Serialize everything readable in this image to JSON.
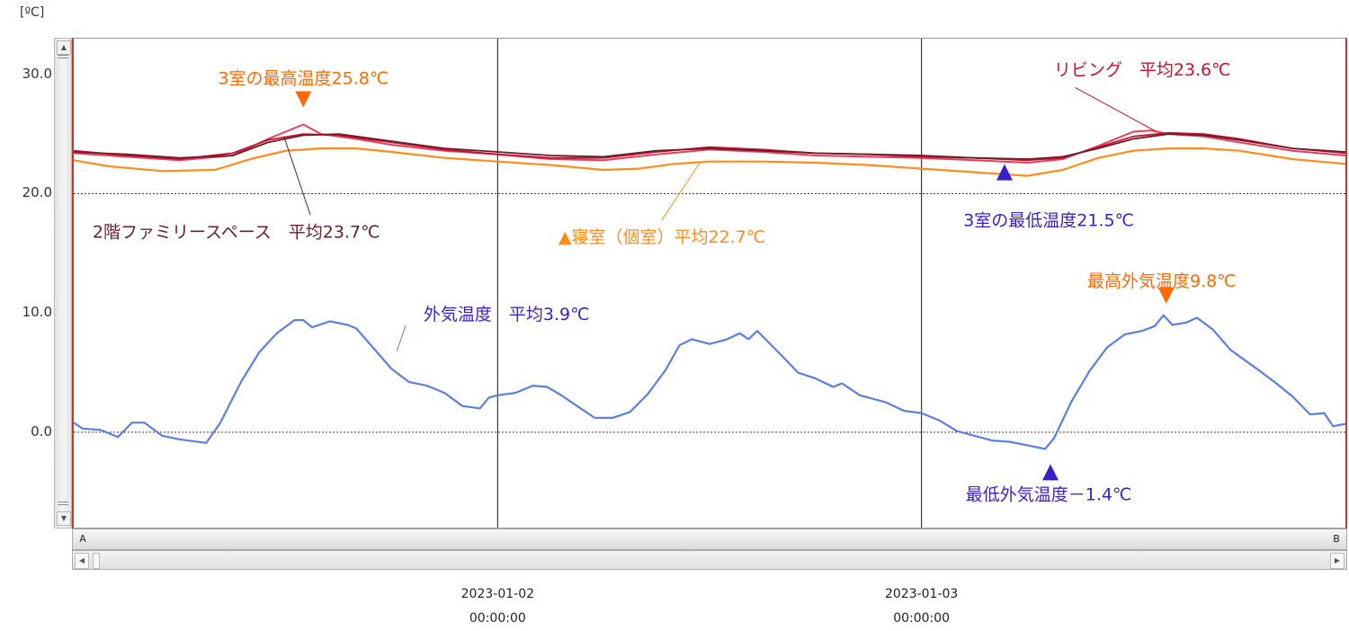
{
  "unit_label": "[ºC]",
  "colors": {
    "living": "#c8102e",
    "family_space": "#6b1d2a",
    "bedroom": "#ff8c1a",
    "room3": "#e83e5c",
    "outdoor": "#5b7fe0",
    "max_marker": "#ff6a00",
    "min_marker": "#3a1fc9"
  },
  "scrollbar": {
    "left_label": "A",
    "right_label": "B"
  },
  "chart_data": {
    "type": "line",
    "ylabel": "[ºC]",
    "ylim": [
      -8,
      33
    ],
    "yticks": [
      "30.0",
      "20.0",
      "10.0",
      "0.0"
    ],
    "ytick_values": [
      30,
      20,
      10,
      0
    ],
    "xlim": [
      0,
      72
    ],
    "xticks": [
      {
        "x": 24,
        "date": "2023-01-02",
        "time": "00:00:00"
      },
      {
        "x": 48,
        "date": "2023-01-03",
        "time": "00:00:00"
      }
    ],
    "reference_lines": [
      20,
      0
    ],
    "series_samples": {
      "outdoor": [
        [
          0,
          0.8
        ],
        [
          0.5,
          0.3
        ],
        [
          1.5,
          0.2
        ],
        [
          2.5,
          -0.4
        ],
        [
          3.3,
          0.8
        ],
        [
          4,
          0.8
        ],
        [
          5,
          -0.3
        ],
        [
          6,
          -0.6
        ],
        [
          7.5,
          -0.9
        ],
        [
          8.3,
          0.8
        ],
        [
          9.5,
          4.3
        ],
        [
          10.5,
          6.7
        ],
        [
          11.5,
          8.3
        ],
        [
          12.5,
          9.4
        ],
        [
          13,
          9.4
        ],
        [
          13.5,
          8.8
        ],
        [
          14.5,
          9.3
        ],
        [
          15.5,
          9.0
        ],
        [
          16,
          8.7
        ],
        [
          17,
          7.0
        ],
        [
          18,
          5.3
        ],
        [
          19,
          4.2
        ],
        [
          20,
          3.9
        ],
        [
          21,
          3.3
        ],
        [
          22,
          2.2
        ],
        [
          23,
          2.0
        ],
        [
          23.5,
          2.9
        ],
        [
          24,
          3.1
        ],
        [
          25,
          3.3
        ],
        [
          26,
          3.9
        ],
        [
          26.8,
          3.8
        ],
        [
          27.5,
          3.2
        ],
        [
          28.5,
          2.2
        ],
        [
          29.5,
          1.2
        ],
        [
          30.5,
          1.2
        ],
        [
          31.5,
          1.7
        ],
        [
          32.5,
          3.2
        ],
        [
          33.5,
          5.2
        ],
        [
          34.3,
          7.3
        ],
        [
          35,
          7.8
        ],
        [
          36,
          7.4
        ],
        [
          37,
          7.8
        ],
        [
          37.7,
          8.3
        ],
        [
          38.2,
          7.8
        ],
        [
          38.7,
          8.5
        ],
        [
          39.5,
          7.3
        ],
        [
          40.3,
          6.1
        ],
        [
          41,
          5.0
        ],
        [
          42,
          4.5
        ],
        [
          43,
          3.8
        ],
        [
          43.5,
          4.1
        ],
        [
          44.5,
          3.1
        ],
        [
          46,
          2.5
        ],
        [
          47,
          1.8
        ],
        [
          48,
          1.6
        ],
        [
          49,
          1.0
        ],
        [
          50,
          0.1
        ],
        [
          51,
          -0.3
        ],
        [
          52,
          -0.7
        ],
        [
          53,
          -0.8
        ],
        [
          54,
          -1.1
        ],
        [
          55,
          -1.4
        ],
        [
          55.5,
          -0.5
        ],
        [
          56.5,
          2.6
        ],
        [
          57.5,
          5.1
        ],
        [
          58.5,
          7.1
        ],
        [
          59.5,
          8.2
        ],
        [
          60.5,
          8.5
        ],
        [
          61.2,
          8.9
        ],
        [
          61.7,
          9.8
        ],
        [
          62.2,
          9.0
        ],
        [
          63,
          9.2
        ],
        [
          63.6,
          9.6
        ],
        [
          64.5,
          8.6
        ],
        [
          65.5,
          6.9
        ],
        [
          67,
          5.3
        ],
        [
          68,
          4.2
        ],
        [
          69,
          3.0
        ],
        [
          70,
          1.5
        ],
        [
          70.8,
          1.6
        ],
        [
          71.3,
          0.5
        ],
        [
          72,
          0.7
        ]
      ],
      "living": [
        [
          0,
          23.6
        ],
        [
          3,
          23.2
        ],
        [
          6,
          22.9
        ],
        [
          9,
          23.4
        ],
        [
          11,
          24.5
        ],
        [
          13,
          25.0
        ],
        [
          15,
          24.9
        ],
        [
          18,
          24.3
        ],
        [
          21,
          23.7
        ],
        [
          24,
          23.3
        ],
        [
          27,
          23.0
        ],
        [
          30,
          23.0
        ],
        [
          33,
          23.5
        ],
        [
          36,
          23.9
        ],
        [
          39,
          23.7
        ],
        [
          42,
          23.4
        ],
        [
          45,
          23.3
        ],
        [
          48,
          23.1
        ],
        [
          51,
          23.0
        ],
        [
          54,
          22.8
        ],
        [
          56,
          23.0
        ],
        [
          58,
          23.9
        ],
        [
          60,
          24.8
        ],
        [
          62,
          25.1
        ],
        [
          64,
          25.0
        ],
        [
          66,
          24.6
        ],
        [
          69,
          23.8
        ],
        [
          72,
          23.4
        ]
      ],
      "family_space": [
        [
          0,
          23.5
        ],
        [
          3,
          23.3
        ],
        [
          6,
          23.0
        ],
        [
          9,
          23.2
        ],
        [
          11,
          24.3
        ],
        [
          13,
          24.9
        ],
        [
          15,
          25.0
        ],
        [
          18,
          24.4
        ],
        [
          21,
          23.8
        ],
        [
          24,
          23.5
        ],
        [
          27,
          23.2
        ],
        [
          30,
          23.1
        ],
        [
          33,
          23.6
        ],
        [
          36,
          23.8
        ],
        [
          39,
          23.6
        ],
        [
          42,
          23.4
        ],
        [
          45,
          23.3
        ],
        [
          48,
          23.2
        ],
        [
          51,
          23.0
        ],
        [
          54,
          22.9
        ],
        [
          56,
          23.1
        ],
        [
          58,
          23.8
        ],
        [
          60,
          24.6
        ],
        [
          62,
          25.0
        ],
        [
          64,
          24.9
        ],
        [
          66,
          24.5
        ],
        [
          69,
          23.8
        ],
        [
          72,
          23.5
        ]
      ],
      "room3": [
        [
          0,
          23.4
        ],
        [
          3,
          23.1
        ],
        [
          6,
          22.8
        ],
        [
          9,
          23.2
        ],
        [
          11,
          24.6
        ],
        [
          12.5,
          25.5
        ],
        [
          13,
          25.8
        ],
        [
          14,
          25.0
        ],
        [
          16,
          24.6
        ],
        [
          18,
          24.1
        ],
        [
          21,
          23.6
        ],
        [
          24,
          23.3
        ],
        [
          27,
          22.9
        ],
        [
          30,
          22.8
        ],
        [
          33,
          23.3
        ],
        [
          36,
          23.7
        ],
        [
          39,
          23.5
        ],
        [
          42,
          23.2
        ],
        [
          45,
          23.1
        ],
        [
          48,
          23.0
        ],
        [
          51,
          22.8
        ],
        [
          54,
          22.6
        ],
        [
          56,
          22.9
        ],
        [
          58,
          24.0
        ],
        [
          60,
          25.2
        ],
        [
          61,
          25.3
        ],
        [
          62,
          25.0
        ],
        [
          64,
          24.8
        ],
        [
          66,
          24.3
        ],
        [
          69,
          23.6
        ],
        [
          72,
          23.2
        ]
      ],
      "bedroom": [
        [
          0,
          22.8
        ],
        [
          2,
          22.3
        ],
        [
          5,
          21.9
        ],
        [
          8,
          22.0
        ],
        [
          10,
          22.9
        ],
        [
          12,
          23.6
        ],
        [
          14,
          23.8
        ],
        [
          16,
          23.8
        ],
        [
          18,
          23.5
        ],
        [
          21,
          23.0
        ],
        [
          24,
          22.7
        ],
        [
          27,
          22.4
        ],
        [
          30,
          22.0
        ],
        [
          32,
          22.1
        ],
        [
          34,
          22.5
        ],
        [
          36,
          22.7
        ],
        [
          39,
          22.7
        ],
        [
          42,
          22.6
        ],
        [
          45,
          22.4
        ],
        [
          48,
          22.1
        ],
        [
          51,
          21.8
        ],
        [
          53,
          21.6
        ],
        [
          54,
          21.5
        ],
        [
          56,
          22.0
        ],
        [
          58,
          23.0
        ],
        [
          60,
          23.6
        ],
        [
          62,
          23.8
        ],
        [
          64,
          23.8
        ],
        [
          66,
          23.6
        ],
        [
          69,
          22.9
        ],
        [
          72,
          22.5
        ]
      ]
    },
    "annotations": [
      {
        "text": "3室の最高温度25.8℃",
        "color_key": "max_marker",
        "x": 13,
        "y": 25.8,
        "marker": "down"
      },
      {
        "text": "リビング　平均23.6℃",
        "color_key": "living",
        "avg": 23.6
      },
      {
        "text": "2階ファミリースペース　平均23.7℃",
        "color_key": "family_space",
        "avg": 23.7
      },
      {
        "text": "▲寝室（個室）平均22.7℃",
        "color_key": "bedroom",
        "avg": 22.7
      },
      {
        "text": "3室の最低温度21.5℃",
        "color_key": "min_marker",
        "x": 54.5,
        "y": 21.5,
        "marker": "up"
      },
      {
        "text": "外気温度　平均3.9℃",
        "color_key": "min_marker",
        "avg": 3.9
      },
      {
        "text": "最高外気温度9.8℃",
        "color_key": "max_marker",
        "x": 61.7,
        "y": 9.8,
        "marker": "down"
      },
      {
        "text": "最低外気温度－1.4℃",
        "color_key": "min_marker",
        "x": 55,
        "y": -1.4,
        "marker": "up"
      }
    ]
  }
}
